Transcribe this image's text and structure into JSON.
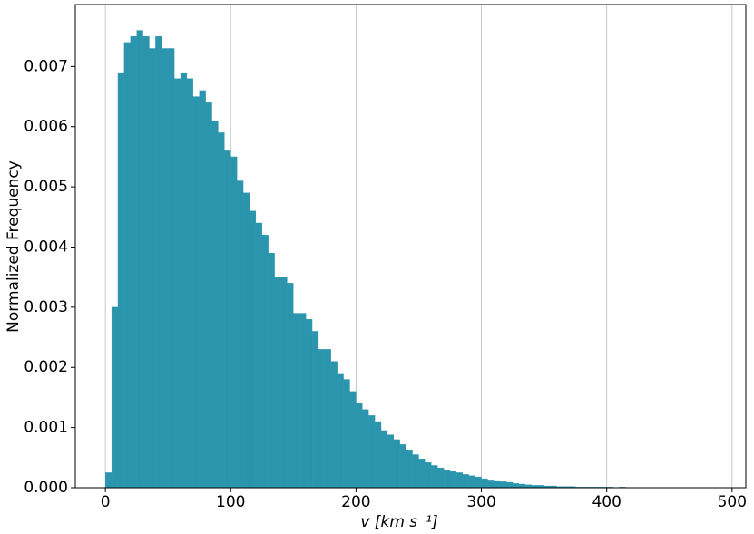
{
  "chart_data": {
    "type": "histogram",
    "xlabel": "v [km s⁻¹]",
    "ylabel": "Normalized Frequency",
    "color": "#2b95ad",
    "grid": "x",
    "bins": [
      0,
      5,
      10,
      15,
      20,
      25,
      30,
      35,
      40,
      45,
      50,
      55,
      60,
      65,
      70,
      75,
      80,
      85,
      90,
      95,
      100,
      105,
      110,
      115,
      120,
      125,
      130,
      135,
      140,
      145,
      150,
      155,
      160,
      165,
      170,
      175,
      180,
      185,
      190,
      195,
      200,
      205,
      210,
      215,
      220,
      225,
      230,
      235,
      240,
      245,
      250,
      255,
      260,
      265,
      270,
      275,
      280,
      285,
      290,
      295,
      300,
      305,
      310,
      315,
      320,
      325,
      330,
      335,
      340,
      345,
      350,
      355,
      360,
      365,
      370,
      375,
      380,
      385,
      390,
      395,
      400,
      405,
      410,
      415,
      420,
      425,
      430,
      435,
      440,
      445,
      450,
      455,
      460,
      465,
      470,
      475,
      480
    ],
    "values": [
      0.00025,
      0.003,
      0.0069,
      0.0074,
      0.0075,
      0.0076,
      0.0075,
      0.0073,
      0.0075,
      0.0073,
      0.0073,
      0.0068,
      0.0069,
      0.0068,
      0.0065,
      0.0066,
      0.0064,
      0.0061,
      0.0059,
      0.0056,
      0.0055,
      0.0051,
      0.0049,
      0.0046,
      0.0044,
      0.0042,
      0.0039,
      0.0035,
      0.0035,
      0.0034,
      0.0029,
      0.0029,
      0.0028,
      0.0026,
      0.0023,
      0.0023,
      0.0021,
      0.0019,
      0.0018,
      0.0016,
      0.0014,
      0.0013,
      0.0012,
      0.0011,
      0.00095,
      0.00088,
      0.0008,
      0.00072,
      0.00063,
      0.00055,
      0.00048,
      0.00042,
      0.00037,
      0.00033,
      0.0003,
      0.00027,
      0.00025,
      0.00022,
      0.0002,
      0.00018,
      0.00015,
      0.00013,
      0.00012,
      0.0001,
      9e-05,
      7e-05,
      6e-05,
      5e-05,
      4e-05,
      4e-05,
      3e-05,
      3e-05,
      2e-05,
      2e-05,
      2e-05,
      1e-05,
      1e-05,
      1e-05,
      1e-05,
      1e-05,
      1e-05,
      0,
      1e-05,
      0,
      0,
      0,
      0,
      0,
      0,
      0,
      0,
      0,
      0,
      0,
      0,
      0
    ],
    "xlim": [
      -24,
      511
    ],
    "ylim": [
      0,
      0.00803
    ],
    "xticks": [
      0,
      100,
      200,
      300,
      400,
      500
    ],
    "yticks": [
      {
        "value": 0,
        "label": "0.000"
      },
      {
        "value": 0.001,
        "label": "0.001"
      },
      {
        "value": 0.002,
        "label": "0.002"
      },
      {
        "value": 0.003,
        "label": "0.003"
      },
      {
        "value": 0.004,
        "label": "0.004"
      },
      {
        "value": 0.005,
        "label": "0.005"
      },
      {
        "value": 0.006,
        "label": "0.006"
      },
      {
        "value": 0.007,
        "label": "0.007"
      }
    ]
  }
}
